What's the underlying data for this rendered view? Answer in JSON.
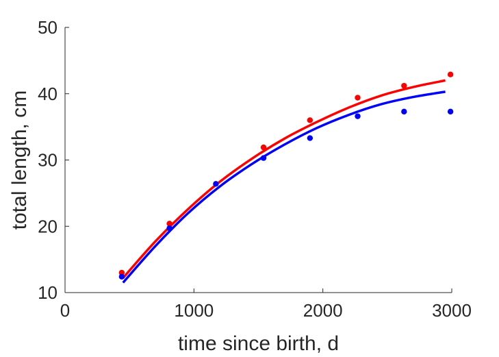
{
  "chart_data": {
    "type": "scatter",
    "xlabel": "time since birth, d",
    "ylabel": "total length, cm",
    "xlim": [
      0,
      3000
    ],
    "ylim": [
      10,
      50
    ],
    "xticks": [
      0,
      1000,
      2000,
      3000
    ],
    "yticks": [
      10,
      20,
      30,
      40,
      50
    ],
    "grid": false,
    "legend": "none",
    "series": [
      {
        "color": "#ff0000",
        "points": {
          "x": [
            440,
            810,
            1540,
            1900,
            2270,
            2630,
            2990
          ],
          "y": [
            13.0,
            20.4,
            31.9,
            36.0,
            39.4,
            41.2,
            42.9
          ]
        },
        "fit": {
          "x": [
            450,
            700,
            950,
            1200,
            1450,
            1700,
            1950,
            2200,
            2450,
            2700,
            2950
          ],
          "y": [
            12.2,
            17.7,
            22.5,
            26.7,
            30.2,
            33.2,
            35.7,
            37.9,
            39.7,
            41.0,
            42.0
          ]
        }
      },
      {
        "color": "#0000ff",
        "points": {
          "x": [
            440,
            810,
            1170,
            1540,
            1900,
            2270,
            2630,
            2990
          ],
          "y": [
            12.4,
            19.7,
            26.4,
            30.3,
            33.3,
            36.6,
            37.3,
            37.3
          ]
        },
        "fit": {
          "x": [
            450,
            700,
            950,
            1200,
            1450,
            1700,
            1950,
            2200,
            2450,
            2700,
            2950
          ],
          "y": [
            11.5,
            17.0,
            21.9,
            26.0,
            29.4,
            32.3,
            34.8,
            36.8,
            38.4,
            39.5,
            40.3
          ]
        }
      }
    ]
  }
}
